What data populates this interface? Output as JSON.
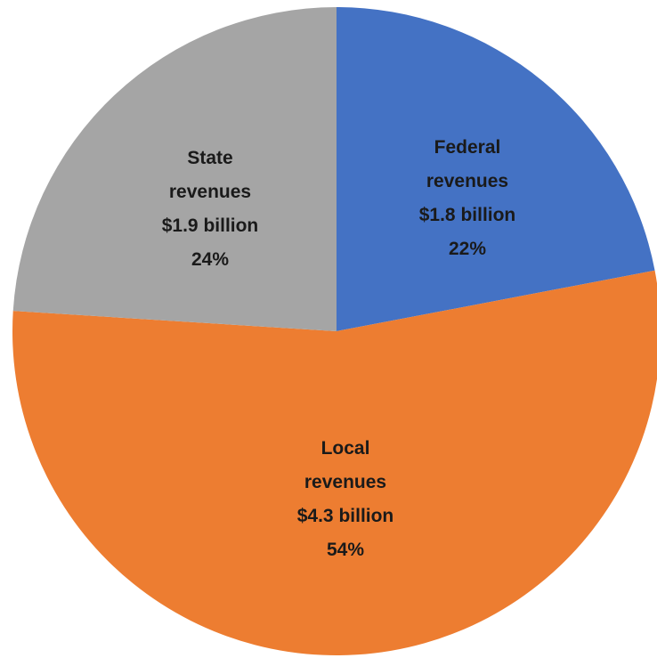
{
  "chart_data": {
    "type": "pie",
    "title": "",
    "slices": [
      {
        "id": "federal",
        "label_lines": [
          "Federal",
          "revenues",
          "$1.8 billion",
          "22%"
        ],
        "value": 1.8,
        "percent": 22,
        "color": "#4472c4"
      },
      {
        "id": "local",
        "label_lines": [
          "Local",
          "revenues",
          "$4.3 billion",
          "54%"
        ],
        "value": 4.3,
        "percent": 54,
        "color": "#ed7d31"
      },
      {
        "id": "state",
        "label_lines": [
          "State",
          "revenues",
          "$1.9 billion",
          "24%"
        ],
        "value": 1.9,
        "percent": 24,
        "color": "#a5a5a5"
      }
    ]
  }
}
